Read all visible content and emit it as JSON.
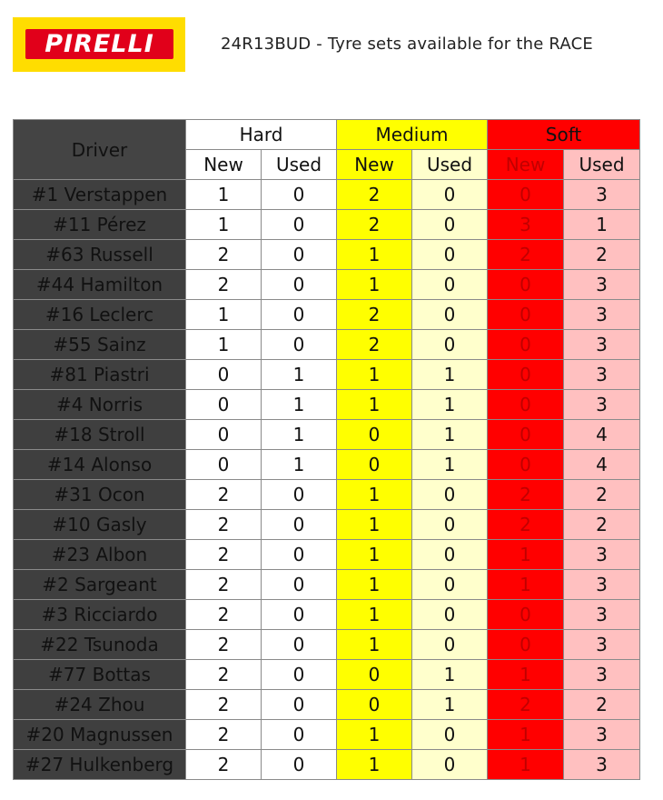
{
  "header": {
    "logo_text": "PIRELLI",
    "title": "24R13BUD - Tyre sets available for the RACE"
  },
  "colors": {
    "logo_background": "#ffdd00",
    "logo_red": "#e1001a",
    "hard": "#ffffff",
    "medium": "#ffff00",
    "medium_used": "#ffffcc",
    "soft": "#ff0000",
    "soft_used": "#ffc0c0",
    "driver_column": "#3f3f3f"
  },
  "table": {
    "driver_header": "Driver",
    "compounds": [
      "Hard",
      "Medium",
      "Soft"
    ],
    "subheaders": [
      "New",
      "Used",
      "New",
      "Used",
      "New",
      "Used"
    ],
    "rows": [
      {
        "driver": "#1 Verstappen",
        "values": [
          "1",
          "0",
          "2",
          "0",
          "0",
          "3"
        ]
      },
      {
        "driver": "#11 Pérez",
        "values": [
          "1",
          "0",
          "2",
          "0",
          "3",
          "1"
        ]
      },
      {
        "driver": "#63 Russell",
        "values": [
          "2",
          "0",
          "1",
          "0",
          "2",
          "2"
        ]
      },
      {
        "driver": "#44 Hamilton",
        "values": [
          "2",
          "0",
          "1",
          "0",
          "0",
          "3"
        ]
      },
      {
        "driver": "#16 Leclerc",
        "values": [
          "1",
          "0",
          "2",
          "0",
          "0",
          "3"
        ]
      },
      {
        "driver": "#55 Sainz",
        "values": [
          "1",
          "0",
          "2",
          "0",
          "0",
          "3"
        ]
      },
      {
        "driver": "#81 Piastri",
        "values": [
          "0",
          "1",
          "1",
          "1",
          "0",
          "3"
        ]
      },
      {
        "driver": "#4 Norris",
        "values": [
          "0",
          "1",
          "1",
          "1",
          "0",
          "3"
        ]
      },
      {
        "driver": "#18 Stroll",
        "values": [
          "0",
          "1",
          "0",
          "1",
          "0",
          "4"
        ]
      },
      {
        "driver": "#14 Alonso",
        "values": [
          "0",
          "1",
          "0",
          "1",
          "0",
          "4"
        ]
      },
      {
        "driver": "#31 Ocon",
        "values": [
          "2",
          "0",
          "1",
          "0",
          "2",
          "2"
        ]
      },
      {
        "driver": "#10 Gasly",
        "values": [
          "2",
          "0",
          "1",
          "0",
          "2",
          "2"
        ]
      },
      {
        "driver": "#23 Albon",
        "values": [
          "2",
          "0",
          "1",
          "0",
          "1",
          "3"
        ]
      },
      {
        "driver": "#2 Sargeant",
        "values": [
          "2",
          "0",
          "1",
          "0",
          "1",
          "3"
        ]
      },
      {
        "driver": "#3 Ricciardo",
        "values": [
          "2",
          "0",
          "1",
          "0",
          "0",
          "3"
        ]
      },
      {
        "driver": "#22 Tsunoda",
        "values": [
          "2",
          "0",
          "1",
          "0",
          "0",
          "3"
        ]
      },
      {
        "driver": "#77 Bottas",
        "values": [
          "2",
          "0",
          "0",
          "1",
          "1",
          "3"
        ]
      },
      {
        "driver": "#24 Zhou",
        "values": [
          "2",
          "0",
          "0",
          "1",
          "2",
          "2"
        ]
      },
      {
        "driver": "#20 Magnussen",
        "values": [
          "2",
          "0",
          "1",
          "0",
          "1",
          "3"
        ]
      },
      {
        "driver": "#27 Hulkenberg",
        "values": [
          "2",
          "0",
          "1",
          "0",
          "1",
          "3"
        ]
      }
    ]
  }
}
